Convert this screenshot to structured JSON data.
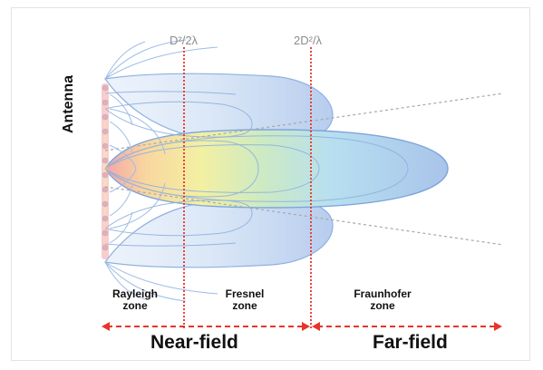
{
  "formulas": {
    "near_boundary": "D²/2λ",
    "far_boundary": "2D²/λ"
  },
  "antenna_label": "Antenna",
  "zones": {
    "rayleigh": {
      "line1": "Rayleigh",
      "line2": "zone"
    },
    "fresnel": {
      "line1": "Fresnel",
      "line2": "zone"
    },
    "fraunhofer": {
      "line1": "Fraunhofer",
      "line2": "zone"
    }
  },
  "fields": {
    "near": "Near-field",
    "far": "Far-field"
  },
  "colors": {
    "boundary_line": "#e8352a",
    "arrow": "#e8352a",
    "beam_blue": "#7da4dc",
    "guide_line": "#a8a8a8"
  }
}
